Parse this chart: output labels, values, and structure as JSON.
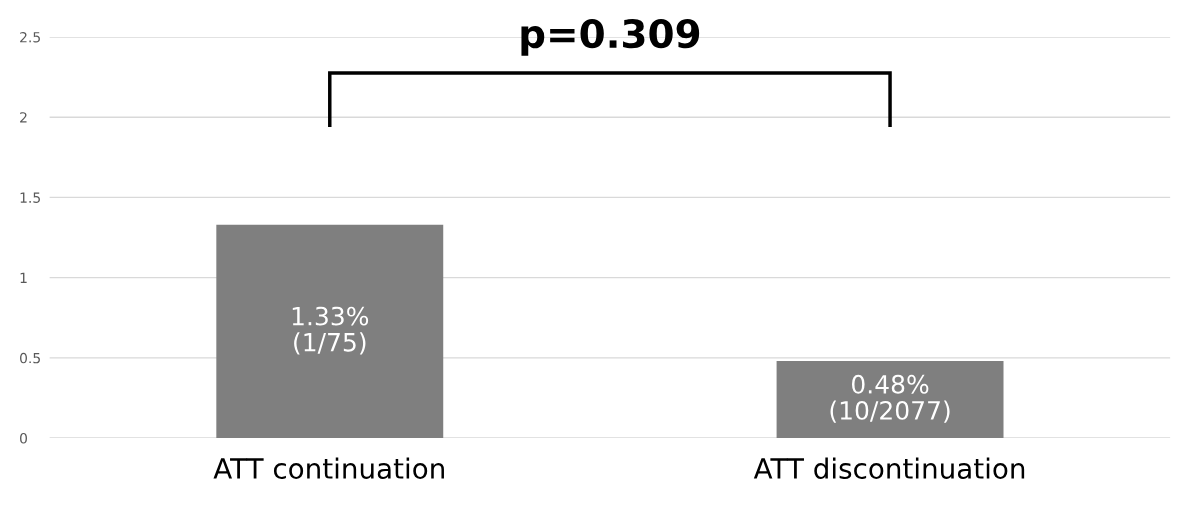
{
  "chart_data": {
    "type": "bar",
    "categories": [
      "ATT continuation",
      "ATT discontinuation"
    ],
    "values": [
      1.33,
      0.48
    ],
    "color": "#7f7f7f",
    "value_labels": [
      "1.33%\n(1/75)",
      "0.48%\n(10/2077)"
    ],
    "ylim": [
      0,
      2.5
    ],
    "yticks": [
      0,
      {
        "value": 0.5,
        "label": "0.5"
      },
      1,
      {
        "value": 1.5,
        "label": "1.5"
      },
      2,
      {
        "value": 2.5,
        "label": "2.5"
      }
    ],
    "grid": "y",
    "annotations": [
      "p=0.309"
    ]
  }
}
